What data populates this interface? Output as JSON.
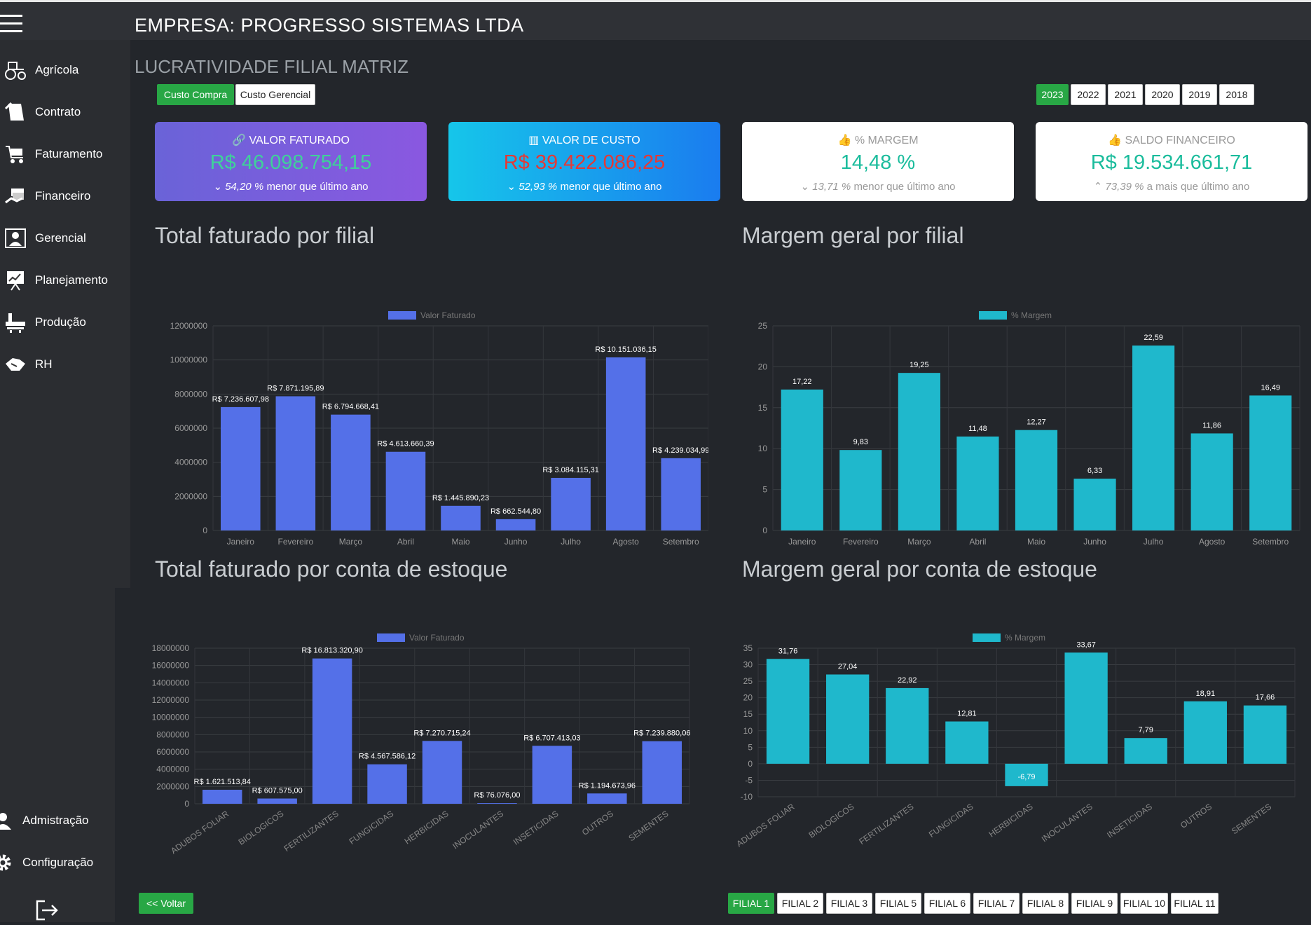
{
  "header": {
    "company": "EMPRESA: PROGRESSO SISTEMAS LTDA"
  },
  "sidebar": {
    "items": [
      {
        "label": "Agrícola",
        "icon": "tractor-icon"
      },
      {
        "label": "Contrato",
        "icon": "contract-icon"
      },
      {
        "label": "Faturamento",
        "icon": "cart-icon"
      },
      {
        "label": "Financeiro",
        "icon": "money-icon"
      },
      {
        "label": "Gerencial",
        "icon": "manager-icon"
      },
      {
        "label": "Planejamento",
        "icon": "presentation-icon"
      },
      {
        "label": "Produção",
        "icon": "factory-icon"
      },
      {
        "label": "RH",
        "icon": "handshake-icon"
      }
    ],
    "bottom": [
      {
        "label": "Admistração",
        "icon": "admin-icon"
      },
      {
        "label": "Configuração",
        "icon": "gear-icon"
      }
    ]
  },
  "page": {
    "title": "LUCRATIVIDADE FILIAL MATRIZ"
  },
  "cost_toggle": {
    "compra": "Custo Compra",
    "gerencial": "Custo Gerencial",
    "active": "compra"
  },
  "years": {
    "options": [
      "2023",
      "2022",
      "2021",
      "2020",
      "2019",
      "2018"
    ],
    "active": "2023"
  },
  "cards": [
    {
      "title": "VALOR FATURADO",
      "value": "R$ 46.098.754,15",
      "pct": "54,20 %",
      "sub": "menor que último ano",
      "arrow": "down",
      "value_color": "#3fd19a"
    },
    {
      "title": "VALOR DE CUSTO",
      "value": "R$ 39.422.086,25",
      "pct": "52,93 %",
      "sub": "menor que último ano",
      "arrow": "down",
      "value_color": "#e74c3c"
    },
    {
      "title": "% MARGEM",
      "value": "14,48 %",
      "pct": "13,71 %",
      "sub": "menor que último ano",
      "arrow": "down",
      "value_color": "#1abc9c"
    },
    {
      "title": "SALDO FINANCEIRO",
      "value": "R$ 19.534.661,71",
      "pct": "73,39 %",
      "sub": "a mais que último ano",
      "arrow": "up",
      "value_color": "#1abc9c"
    }
  ],
  "sections": {
    "faturado_filial": "Total faturado por filial",
    "margem_filial": "Margem geral por filial",
    "faturado_estoque": "Total faturado por conta de estoque",
    "margem_estoque": "Margem geral por conta de estoque"
  },
  "chart_data": [
    {
      "type": "bar",
      "series_name": "Valor Faturado",
      "color": "#5470e8",
      "categories": [
        "Janeiro",
        "Fevereiro",
        "Março",
        "Abril",
        "Maio",
        "Junho",
        "Julho",
        "Agosto",
        "Setembro"
      ],
      "values": [
        7236607.98,
        7871195.89,
        6794668.41,
        4613660.39,
        1445890.23,
        662544.8,
        3084115.31,
        10151036.15,
        4239034.99
      ],
      "labels": [
        "R$ 7.236.607,98",
        "R$ 7.871.195,89",
        "R$ 6.794.668,41",
        "R$ 4.613.660,39",
        "R$ 1.445.890,23",
        "R$ 662.544,80",
        "R$ 3.084.115,31",
        "R$ 10.151.036,15",
        "R$ 4.239.034,99"
      ],
      "ylim": [
        0,
        12000000
      ],
      "yticks": [
        "0",
        "2000000",
        "4000000",
        "6000000",
        "8000000",
        "10000000",
        "12000000"
      ],
      "grid": true,
      "legend": "top"
    },
    {
      "type": "bar",
      "series_name": "% Margem",
      "color": "#1fb8cc",
      "categories": [
        "Janeiro",
        "Fevereiro",
        "Março",
        "Abril",
        "Maio",
        "Junho",
        "Julho",
        "Agosto",
        "Setembro"
      ],
      "values": [
        17.22,
        9.83,
        19.25,
        11.48,
        12.27,
        6.33,
        22.59,
        11.86,
        16.49
      ],
      "labels": [
        "17,22",
        "9,83",
        "19,25",
        "11,48",
        "12,27",
        "6,33",
        "22,59",
        "11,86",
        "16,49"
      ],
      "ylim": [
        0,
        25
      ],
      "yticks": [
        "0",
        "5",
        "10",
        "15",
        "20",
        "25"
      ],
      "grid": true,
      "legend": "top"
    },
    {
      "type": "bar",
      "series_name": "Valor Faturado",
      "color": "#5470e8",
      "categories": [
        "ADUBOS FOLIAR",
        "BIOLOGICOS",
        "FERTILIZANTES",
        "FUNGICIDAS",
        "HERBICIDAS",
        "INOCULANTES",
        "INSETICIDAS",
        "OUTROS",
        "SEMENTES"
      ],
      "values": [
        1621513.84,
        607575.0,
        16813320.9,
        4567586.12,
        7270715.24,
        76076.0,
        6707413.03,
        1194673.96,
        7239880.06
      ],
      "labels": [
        "R$ 1.621.513,84",
        "R$ 607.575,00",
        "R$ 16.813.320,90",
        "R$ 4.567.586,12",
        "R$ 7.270.715,24",
        "R$ 76.076,00",
        "R$ 6.707.413,03",
        "R$ 1.194.673,96",
        "R$ 7.239.880,06"
      ],
      "ylim": [
        0,
        18000000
      ],
      "yticks": [
        "0",
        "2000000",
        "4000000",
        "6000000",
        "8000000",
        "10000000",
        "12000000",
        "14000000",
        "16000000",
        "18000000"
      ],
      "grid": true,
      "legend": "top"
    },
    {
      "type": "bar",
      "series_name": "% Margem",
      "color": "#1fb8cc",
      "categories": [
        "ADUBOS FOLIAR",
        "BIOLOGICOS",
        "FERTILIZANTES",
        "FUNGICIDAS",
        "HERBICIDAS",
        "INOCULANTES",
        "INSETICIDAS",
        "OUTROS",
        "SEMENTES"
      ],
      "values": [
        31.76,
        27.04,
        22.92,
        12.81,
        -6.79,
        33.67,
        7.79,
        18.91,
        17.66
      ],
      "labels": [
        "31,76",
        "27,04",
        "22,92",
        "12,81",
        "-6,79",
        "33,67",
        "7,79",
        "18,91",
        "17,66"
      ],
      "ylim": [
        -10,
        35
      ],
      "yticks": [
        "-10",
        "-5",
        "0",
        "5",
        "10",
        "15",
        "20",
        "25",
        "30",
        "35"
      ],
      "grid": true,
      "legend": "top"
    }
  ],
  "footer": {
    "back": "<< Voltar",
    "filiais": [
      "FILIAL 1",
      "FILIAL 2",
      "FILIAL 3",
      "FILIAL 5",
      "FILIAL 6",
      "FILIAL 7",
      "FILIAL 8",
      "FILIAL 9",
      "FILIAL 10",
      "FILIAL 11"
    ],
    "active": "FILIAL 1"
  }
}
